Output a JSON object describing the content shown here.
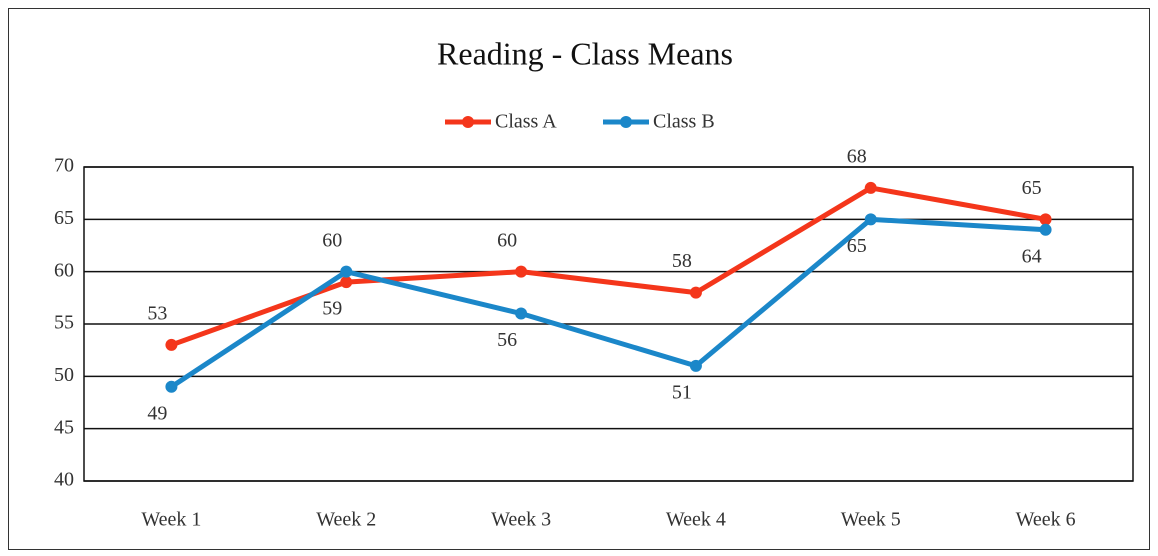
{
  "chart_data": {
    "type": "line",
    "title": "Reading - Class Means",
    "categories": [
      "Week 1",
      "Week 2",
      "Week 3",
      "Week 4",
      "Week 5",
      "Week 6"
    ],
    "series": [
      {
        "name": "Class A",
        "color": "#f4361b",
        "values": [
          53,
          59,
          60,
          58,
          68,
          65
        ]
      },
      {
        "name": "Class B",
        "color": "#1b87c9",
        "values": [
          49,
          60,
          56,
          51,
          65,
          64
        ]
      }
    ],
    "ylim": [
      40,
      70
    ],
    "yticks": [
      40,
      45,
      50,
      55,
      60,
      65,
      70
    ],
    "grid": true,
    "legend": "top"
  }
}
